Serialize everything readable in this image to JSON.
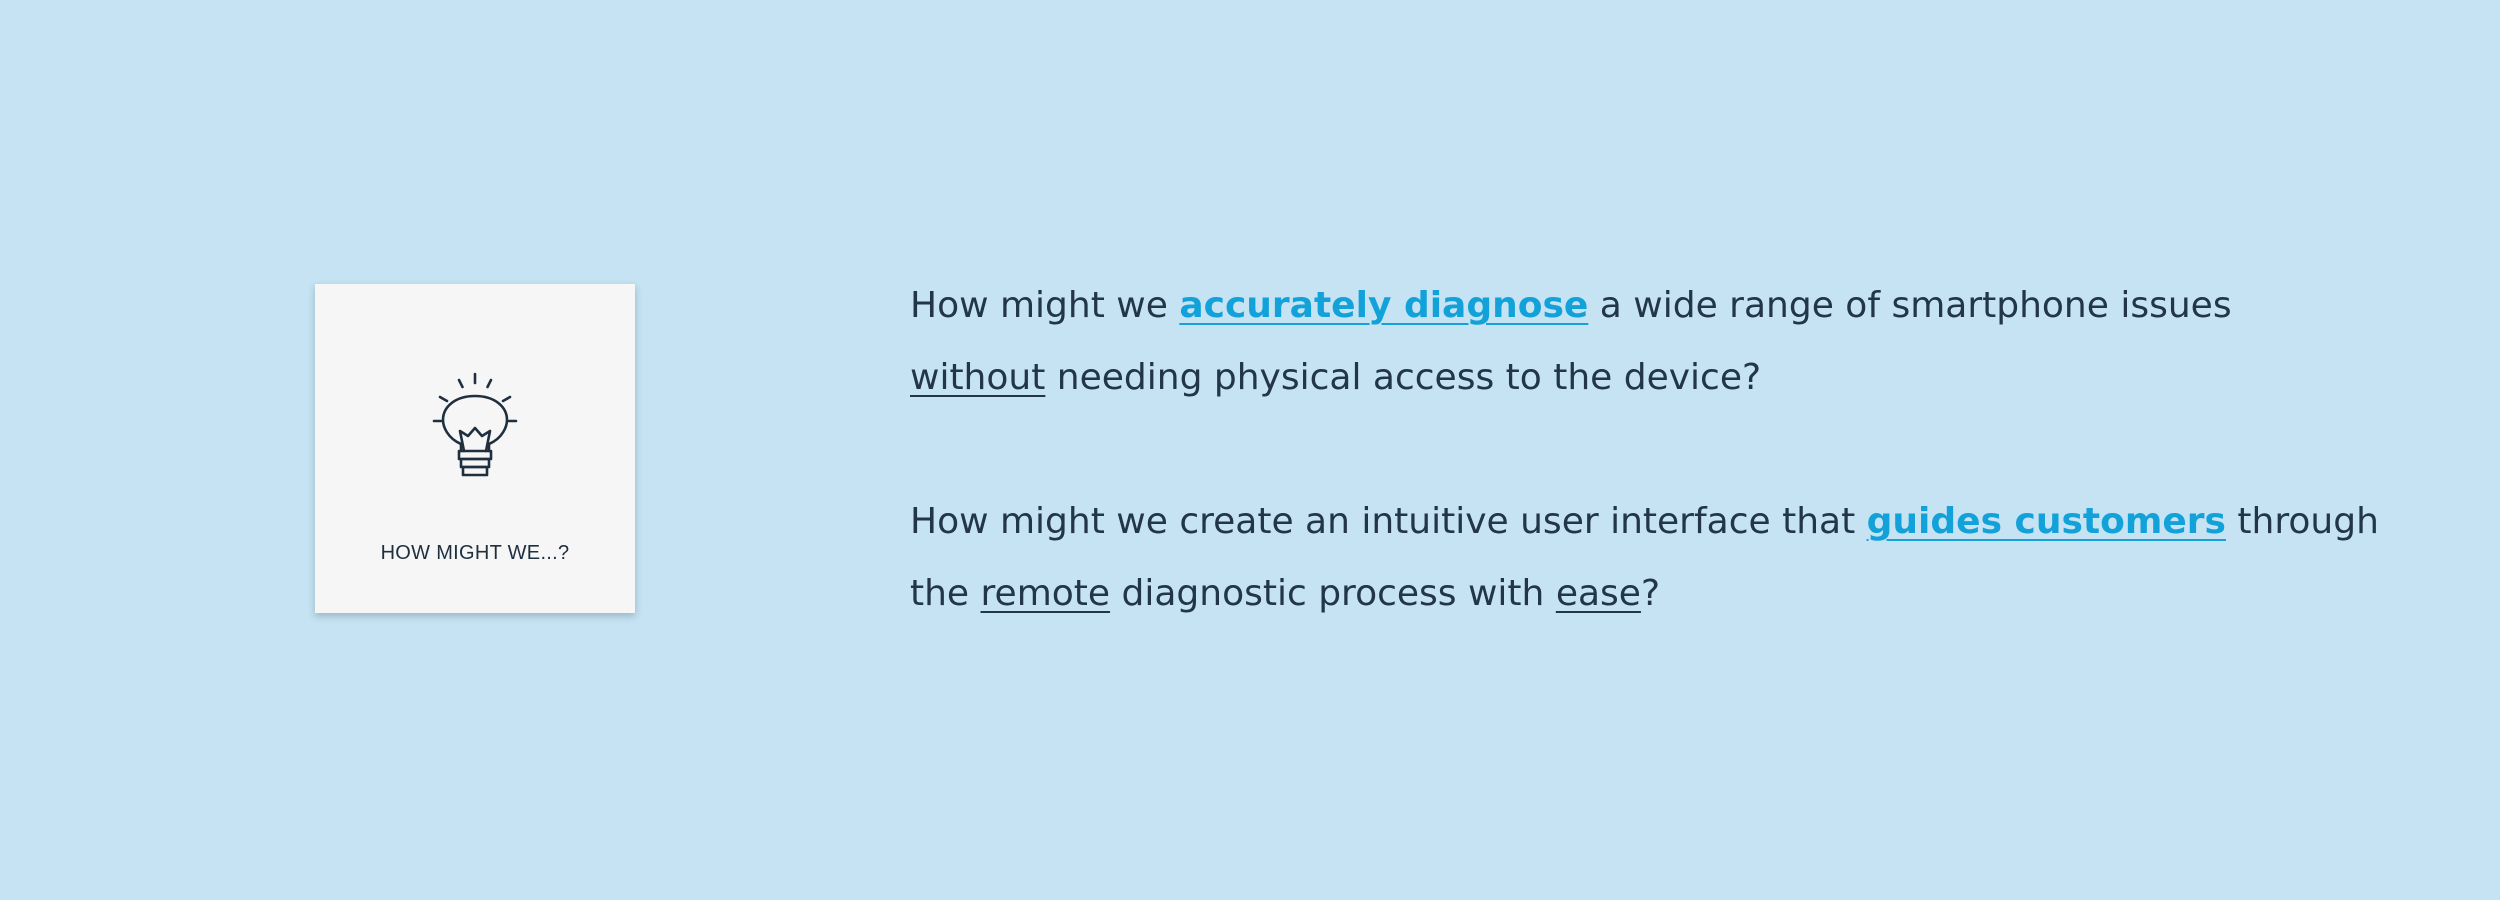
{
  "card": {
    "icon": "lightbulb-icon",
    "label": "HOW MIGHT WE...?"
  },
  "statements": [
    {
      "line1": {
        "lead": "How might we ",
        "highlight": "accurately diagnose",
        "tail": " a wide range of smartphone issues"
      },
      "line2": {
        "emphasis": "without",
        "tail": " needing physical access to the device?"
      }
    },
    {
      "line1": {
        "lead": "How might we create an intuitive user interface that ",
        "highlight": "guides customers",
        "tail": " through"
      },
      "line2": {
        "lead": "the ",
        "emphasis1": "remote",
        "middle": " diagnostic process with ",
        "emphasis2": "ease",
        "tail": "?"
      }
    }
  ],
  "colors": {
    "background": "#c5e3f3",
    "card": "#f6f6f6",
    "text": "#23354a",
    "highlight": "#12a2d9"
  }
}
